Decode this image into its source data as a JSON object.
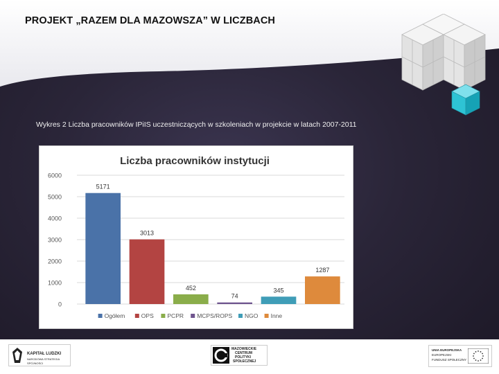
{
  "slide": {
    "title": "PROJEKT „RAZEM DLA MAZOWSZA” W LICZBACH",
    "caption": "Wykres 2 Liczba pracowników IPiIS uczestniczących w szkoleniach w projekcie w latach 2007-2011"
  },
  "chart_data": {
    "type": "bar",
    "title": "Liczba pracowników instytucji",
    "categories": [
      "Ogółem",
      "OPS",
      "PCPR",
      "MCPS/ROPS",
      "NGO",
      "Inne"
    ],
    "values": [
      5171,
      3013,
      452,
      74,
      345,
      1287
    ],
    "colors": [
      "#4a72a8",
      "#b34442",
      "#8aad4a",
      "#6f558e",
      "#3f9db7",
      "#de8a3c"
    ],
    "ylim": [
      0,
      6000
    ],
    "yticks": [
      0,
      1000,
      2000,
      3000,
      4000,
      5000,
      6000
    ],
    "grid": true,
    "legend": "bottom"
  },
  "logos": {
    "kapital_ludzki": {
      "line1": "KAPITAŁ LUDZKI",
      "line2": "NARODOWA STRATEGIA SPÓJNOŚCI"
    },
    "mcps": {
      "lines": [
        "MAZOWIECKIE",
        "CENTRUM",
        "POLITYKI",
        "SPOŁECZNEJ"
      ]
    },
    "eu": {
      "lines": [
        "UNIA EUROPEJSKA",
        "EUROPEJSKI",
        "FUNDUSZ SPOŁECZNY"
      ]
    }
  }
}
